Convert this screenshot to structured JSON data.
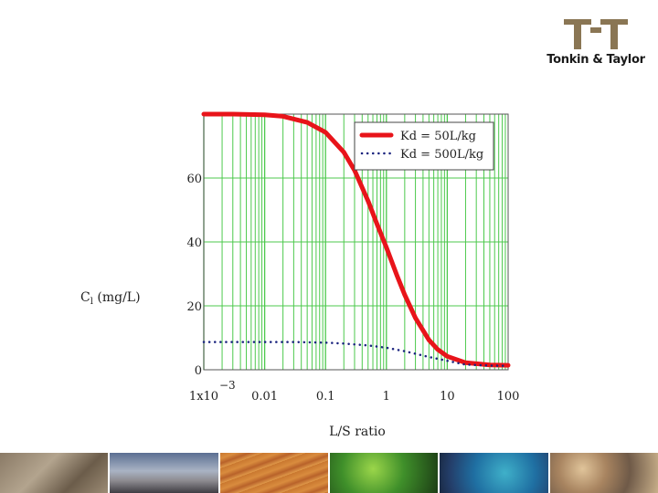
{
  "brand": {
    "name": "Tonkin & Taylor",
    "mark_color": "#8a7654"
  },
  "chart_data": {
    "type": "line",
    "title": "",
    "xlabel": "L/S ratio",
    "ylabel_main": "C",
    "ylabel_sub": "l",
    "ylabel_unit": " (mg/L)",
    "x_scale": "log",
    "xlim": [
      0.001,
      100
    ],
    "ylim": [
      0,
      80
    ],
    "x_ticks": [
      {
        "value": 0.001,
        "label": "1x10",
        "exp": "−3"
      },
      {
        "value": 0.01,
        "label": "0.01"
      },
      {
        "value": 0.1,
        "label": "0.1"
      },
      {
        "value": 1,
        "label": "1"
      },
      {
        "value": 10,
        "label": "10"
      },
      {
        "value": 100,
        "label": "100"
      }
    ],
    "y_ticks": [
      {
        "value": 0,
        "label": "0"
      },
      {
        "value": 20,
        "label": "20"
      },
      {
        "value": 40,
        "label": "40"
      },
      {
        "value": 60,
        "label": "60"
      }
    ],
    "grid": true,
    "grid_color": "#4cc94c",
    "legend_position": "top-right",
    "series": [
      {
        "name": "Kd = 50L/kg",
        "color": "#e8141a",
        "style": "solid",
        "x": [
          0.001,
          0.003,
          0.01,
          0.02,
          0.05,
          0.1,
          0.2,
          0.3,
          0.5,
          0.7,
          1,
          1.5,
          2,
          3,
          5,
          7,
          10,
          20,
          50,
          100
        ],
        "y": [
          80,
          80,
          79.8,
          79.3,
          77.4,
          74.3,
          68.1,
          62.4,
          52.8,
          45.6,
          38.3,
          29.4,
          23.5,
          16.2,
          9.3,
          6.3,
          4.2,
          2.2,
          1.5,
          1.4
        ]
      },
      {
        "name": "Kd = 500L/kg",
        "color": "#1a237e",
        "style": "dotted",
        "x": [
          0.001,
          0.003,
          0.01,
          0.03,
          0.1,
          0.2,
          0.5,
          1,
          2,
          5,
          10,
          20,
          50,
          100
        ],
        "y": [
          8.7,
          8.7,
          8.7,
          8.7,
          8.5,
          8.2,
          7.6,
          6.9,
          5.8,
          4.0,
          2.8,
          1.6,
          1.3,
          1.2
        ]
      }
    ]
  },
  "footer": {
    "tiles": [
      "maori-carving",
      "sky-clouds",
      "sand-dunes",
      "fern-frond",
      "paua-shell",
      "river-stones"
    ]
  }
}
